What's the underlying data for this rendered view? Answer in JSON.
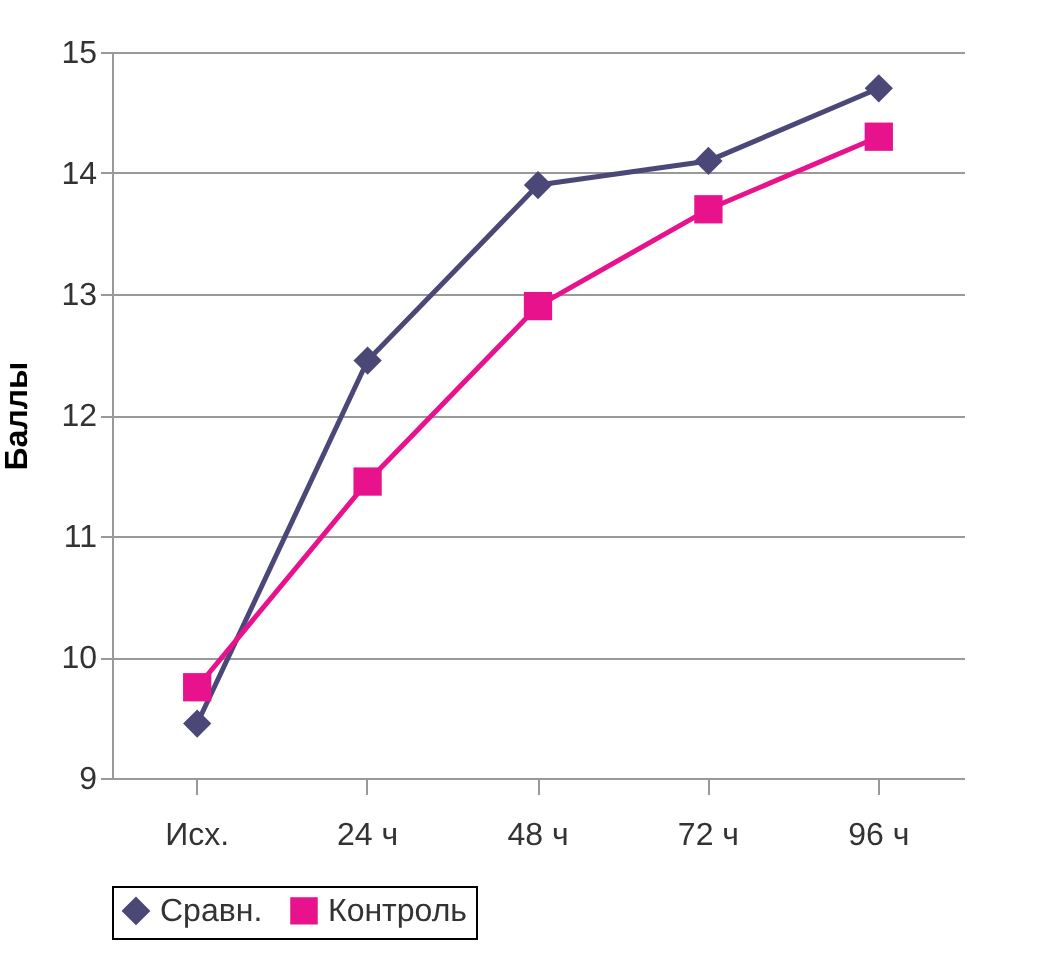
{
  "chart_data": {
    "type": "line",
    "ylabel": "Баллы",
    "categories": [
      "Исх.",
      "24 ч",
      "48 ч",
      "72 ч",
      "96 ч"
    ],
    "series": [
      {
        "name": "Сравн.",
        "color": "#4b4878",
        "marker": "diamond",
        "values": [
          9.45,
          12.45,
          13.9,
          14.1,
          14.7
        ]
      },
      {
        "name": "Контроль",
        "color": "#e8138c",
        "marker": "square",
        "values": [
          9.75,
          11.45,
          12.9,
          13.7,
          14.3
        ]
      }
    ],
    "ylim": [
      9,
      15
    ],
    "yticks": [
      9,
      10,
      11,
      12,
      13,
      14,
      15
    ],
    "grid": "y",
    "legend": "bottom"
  }
}
